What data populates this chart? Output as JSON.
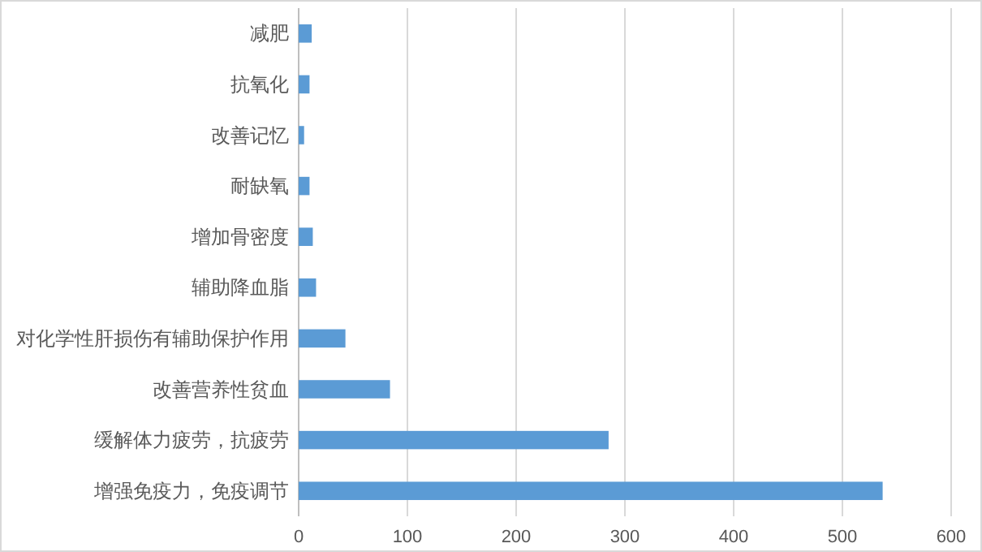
{
  "chart_data": {
    "type": "bar",
    "orientation": "horizontal",
    "categories": [
      "减肥",
      "抗氧化",
      "改善记忆",
      "耐缺氧",
      "增加骨密度",
      "辅助降血脂",
      "对化学性肝损伤有辅助保护作用",
      "改善营养性贫血",
      "缓解体力疲劳，抗疲劳",
      "增强免疫力，免疫调节"
    ],
    "values": [
      12,
      10,
      5,
      10,
      13,
      16,
      43,
      84,
      285,
      537
    ],
    "color": "#5b9bd5",
    "xlim": [
      0,
      600
    ],
    "xticks": [
      0,
      100,
      200,
      300,
      400,
      500,
      600
    ],
    "grid": "x"
  }
}
